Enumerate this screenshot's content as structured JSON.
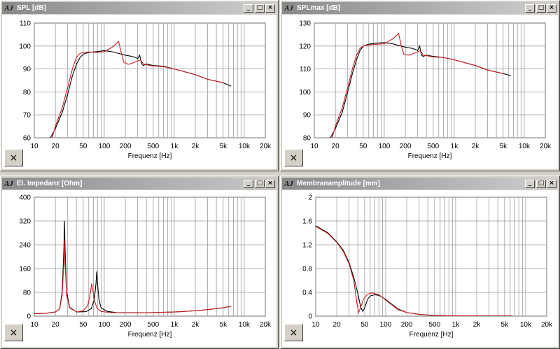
{
  "colors": {
    "series_black": "#000000",
    "series_red": "#d02020",
    "grid": "#9a9a9a"
  },
  "windows": [
    {
      "id": "spl",
      "title": "SPL [dB]",
      "logo": "AJ",
      "active": true,
      "buttons": {
        "minimize": "_",
        "maximize": "□",
        "close": "×"
      },
      "close_tool_icon": "×"
    },
    {
      "id": "splmax",
      "title": "SPLmax [dB]",
      "logo": "AJ",
      "active": true,
      "buttons": {
        "minimize": "_",
        "maximize": "□",
        "close": "×"
      },
      "close_tool_icon": "×"
    },
    {
      "id": "impedance",
      "title": "El. Impedanz [Ohm]",
      "logo": "AJ",
      "active": false,
      "buttons": {
        "minimize": "_",
        "maximize": "□",
        "close": "×"
      },
      "close_tool_icon": "×"
    },
    {
      "id": "amplitude",
      "title": "Membranamplitude [mm]",
      "logo": "AJ",
      "active": true,
      "buttons": {
        "minimize": "_",
        "maximize": "□",
        "close": "×"
      },
      "close_tool_icon": "×"
    }
  ],
  "chart_data": [
    {
      "type": "line",
      "title": "SPL [dB]",
      "xlabel": "Frequenz [Hz]",
      "ylabel": "",
      "xscale": "log",
      "xlim": [
        10,
        20000
      ],
      "ylim": [
        60,
        110
      ],
      "x_ticks": [
        "10",
        "20",
        "50",
        "100",
        "200",
        "500",
        "1k",
        "2k",
        "5k",
        "10k",
        "20k"
      ],
      "y_ticks": [
        "60",
        "70",
        "80",
        "90",
        "100",
        "110"
      ],
      "grid": true,
      "series": [
        {
          "color": "black",
          "points": [
            [
              17,
              60
            ],
            [
              20,
              64
            ],
            [
              25,
              71
            ],
            [
              30,
              79
            ],
            [
              35,
              87
            ],
            [
              40,
              92
            ],
            [
              45,
              95
            ],
            [
              50,
              96.5
            ],
            [
              60,
              97.2
            ],
            [
              80,
              97.6
            ],
            [
              100,
              98
            ],
            [
              130,
              97.5
            ],
            [
              150,
              97
            ],
            [
              200,
              96
            ],
            [
              250,
              95.5
            ],
            [
              280,
              95
            ],
            [
              300,
              94.5
            ],
            [
              320,
              96
            ],
            [
              340,
              92.5
            ],
            [
              360,
              91.5
            ],
            [
              400,
              92.2
            ],
            [
              500,
              91.5
            ],
            [
              700,
              91.2
            ],
            [
              1000,
              90
            ],
            [
              2000,
              87.5
            ],
            [
              3000,
              85.5
            ],
            [
              5000,
              84
            ],
            [
              6500,
              82.5
            ]
          ]
        },
        {
          "color": "red",
          "points": [
            [
              18,
              60
            ],
            [
              20,
              65
            ],
            [
              25,
              73
            ],
            [
              30,
              82
            ],
            [
              35,
              90
            ],
            [
              40,
              95
            ],
            [
              45,
              96.8
            ],
            [
              50,
              97.2
            ],
            [
              60,
              97.4
            ],
            [
              80,
              97.2
            ],
            [
              100,
              97.5
            ],
            [
              130,
              99.5
            ],
            [
              160,
              102
            ],
            [
              175,
              97
            ],
            [
              190,
              93
            ],
            [
              220,
              92
            ],
            [
              250,
              92.5
            ],
            [
              300,
              93.5
            ],
            [
              330,
              94
            ],
            [
              360,
              92.2
            ],
            [
              400,
              91.8
            ],
            [
              500,
              91.3
            ],
            [
              700,
              91
            ],
            [
              1000,
              90
            ],
            [
              2000,
              87.5
            ],
            [
              3000,
              85.5
            ],
            [
              5000,
              84
            ]
          ]
        }
      ]
    },
    {
      "type": "line",
      "title": "SPLmax [dB]",
      "xlabel": "Frequenz [Hz]",
      "ylabel": "",
      "xscale": "log",
      "xlim": [
        10,
        20000
      ],
      "ylim": [
        80,
        130
      ],
      "x_ticks": [
        "10",
        "20",
        "50",
        "100",
        "200",
        "500",
        "1k",
        "2k",
        "5k",
        "10k",
        "20k"
      ],
      "y_ticks": [
        "80",
        "90",
        "100",
        "110",
        "120",
        "130"
      ],
      "grid": true,
      "series": [
        {
          "color": "black",
          "points": [
            [
              17,
              80
            ],
            [
              20,
              84
            ],
            [
              25,
              91
            ],
            [
              30,
              100
            ],
            [
              35,
              108
            ],
            [
              40,
              114
            ],
            [
              45,
              118
            ],
            [
              50,
              120
            ],
            [
              60,
              120.8
            ],
            [
              80,
              121.3
            ],
            [
              100,
              121.5
            ],
            [
              130,
              121
            ],
            [
              150,
              120.5
            ],
            [
              200,
              119.5
            ],
            [
              250,
              119
            ],
            [
              280,
              118.5
            ],
            [
              300,
              118
            ],
            [
              320,
              120
            ],
            [
              340,
              116
            ],
            [
              360,
              115.5
            ],
            [
              400,
              116
            ],
            [
              500,
              115.5
            ],
            [
              700,
              115
            ],
            [
              1000,
              114
            ],
            [
              2000,
              111.5
            ],
            [
              3000,
              109.5
            ],
            [
              5000,
              108
            ],
            [
              6500,
              107
            ]
          ]
        },
        {
          "color": "red",
          "points": [
            [
              18,
              80
            ],
            [
              20,
              85
            ],
            [
              25,
              93
            ],
            [
              30,
              102
            ],
            [
              35,
              110
            ],
            [
              40,
              116
            ],
            [
              45,
              119
            ],
            [
              50,
              120
            ],
            [
              60,
              120.5
            ],
            [
              80,
              120.8
            ],
            [
              100,
              121
            ],
            [
              130,
              123
            ],
            [
              160,
              125.5
            ],
            [
              175,
              120
            ],
            [
              190,
              116.5
            ],
            [
              220,
              116
            ],
            [
              250,
              116.5
            ],
            [
              300,
              117.5
            ],
            [
              330,
              118
            ],
            [
              360,
              116
            ],
            [
              400,
              115.8
            ],
            [
              500,
              115.2
            ],
            [
              700,
              115
            ],
            [
              1000,
              114
            ],
            [
              2000,
              111.5
            ],
            [
              3000,
              109.5
            ],
            [
              5000,
              108
            ]
          ]
        }
      ]
    },
    {
      "type": "line",
      "title": "El. Impedanz [Ohm]",
      "xlabel": "Frequenz [Hz]",
      "ylabel": "",
      "xscale": "log",
      "xlim": [
        10,
        20000
      ],
      "ylim": [
        0,
        400
      ],
      "x_ticks": [
        "10",
        "20",
        "50",
        "100",
        "200",
        "500",
        "1k",
        "2k",
        "5k",
        "10k",
        "20k"
      ],
      "y_ticks": [
        "0",
        "80",
        "160",
        "240",
        "320",
        "400"
      ],
      "grid": true,
      "series": [
        {
          "color": "black",
          "points": [
            [
              10,
              8
            ],
            [
              15,
              10
            ],
            [
              20,
              14
            ],
            [
              23,
              25
            ],
            [
              25,
              80
            ],
            [
              26.5,
              230
            ],
            [
              27,
              320
            ],
            [
              27.5,
              230
            ],
            [
              29,
              80
            ],
            [
              32,
              30
            ],
            [
              40,
              14
            ],
            [
              55,
              15
            ],
            [
              65,
              25
            ],
            [
              72,
              55
            ],
            [
              76,
              110
            ],
            [
              78,
              150
            ],
            [
              80,
              110
            ],
            [
              84,
              55
            ],
            [
              90,
              28
            ],
            [
              110,
              16
            ],
            [
              150,
              12
            ],
            [
              200,
              11
            ],
            [
              500,
              12
            ],
            [
              1000,
              14
            ],
            [
              2000,
              18
            ],
            [
              3000,
              22
            ],
            [
              5000,
              28
            ],
            [
              6500,
              33
            ]
          ]
        },
        {
          "color": "red",
          "points": [
            [
              10,
              8
            ],
            [
              15,
              10
            ],
            [
              20,
              14
            ],
            [
              23,
              25
            ],
            [
              25,
              70
            ],
            [
              26.5,
              180
            ],
            [
              27,
              255
            ],
            [
              27.5,
              180
            ],
            [
              29,
              70
            ],
            [
              32,
              28
            ],
            [
              40,
              14
            ],
            [
              50,
              18
            ],
            [
              58,
              35
            ],
            [
              63,
              75
            ],
            [
              66,
              110
            ],
            [
              68,
              95
            ],
            [
              72,
              55
            ],
            [
              78,
              28
            ],
            [
              90,
              16
            ],
            [
              120,
              12
            ],
            [
              200,
              11
            ],
            [
              500,
              12
            ],
            [
              1000,
              14
            ],
            [
              2000,
              18
            ],
            [
              3000,
              22
            ],
            [
              5000,
              28
            ],
            [
              6500,
              33
            ]
          ]
        }
      ]
    },
    {
      "type": "line",
      "title": "Membranamplitude [mm]",
      "xlabel": "Frequenz [Hz]",
      "ylabel": "",
      "xscale": "log",
      "xlim": [
        10,
        20000
      ],
      "ylim": [
        0,
        2
      ],
      "x_ticks": [
        "10",
        "20",
        "50",
        "100",
        "200",
        "500",
        "1k",
        "2k",
        "5k",
        "10k",
        "20k"
      ],
      "y_ticks": [
        "0",
        "0.4",
        "0.8",
        "1.2",
        "1.6",
        "2"
      ],
      "grid": true,
      "series": [
        {
          "color": "black",
          "points": [
            [
              10,
              1.52
            ],
            [
              15,
              1.4
            ],
            [
              20,
              1.25
            ],
            [
              25,
              1.1
            ],
            [
              30,
              0.9
            ],
            [
              35,
              0.65
            ],
            [
              40,
              0.38
            ],
            [
              44,
              0.15
            ],
            [
              47,
              0.08
            ],
            [
              50,
              0.14
            ],
            [
              55,
              0.28
            ],
            [
              60,
              0.34
            ],
            [
              70,
              0.36
            ],
            [
              80,
              0.35
            ],
            [
              100,
              0.28
            ],
            [
              150,
              0.12
            ],
            [
              200,
              0.06
            ],
            [
              300,
              0.03
            ],
            [
              500,
              0.01
            ],
            [
              1000,
              0.005
            ],
            [
              3000,
              0.002
            ],
            [
              6500,
              0.002
            ]
          ]
        },
        {
          "color": "red",
          "points": [
            [
              10,
              1.51
            ],
            [
              15,
              1.39
            ],
            [
              20,
              1.24
            ],
            [
              25,
              1.08
            ],
            [
              30,
              0.88
            ],
            [
              35,
              0.6
            ],
            [
              39,
              0.2
            ],
            [
              41,
              0.06
            ],
            [
              43,
              0.12
            ],
            [
              48,
              0.28
            ],
            [
              55,
              0.37
            ],
            [
              65,
              0.39
            ],
            [
              80,
              0.36
            ],
            [
              100,
              0.27
            ],
            [
              150,
              0.11
            ],
            [
              200,
              0.06
            ],
            [
              300,
              0.03
            ],
            [
              500,
              0.01
            ],
            [
              1000,
              0.005
            ],
            [
              3000,
              0.002
            ],
            [
              6500,
              0.002
            ]
          ]
        }
      ]
    }
  ]
}
